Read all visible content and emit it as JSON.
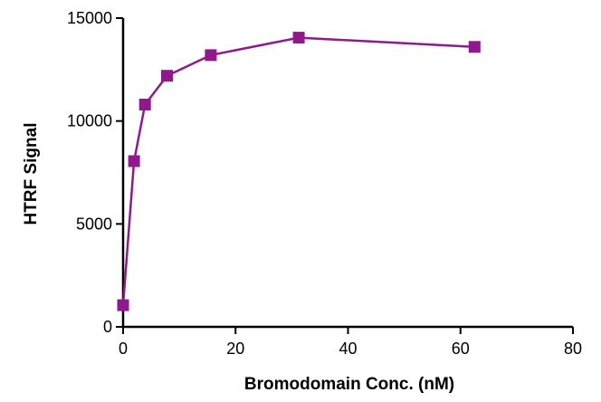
{
  "chart_data": {
    "type": "line",
    "title": "",
    "xlabel": "Bromodomain Conc. (nM)",
    "ylabel": "HTRF Signal",
    "xlim": [
      0,
      80
    ],
    "ylim": [
      0,
      15000
    ],
    "x_ticks": [
      0,
      20,
      40,
      60,
      80
    ],
    "y_ticks": [
      0,
      5000,
      10000,
      15000
    ],
    "x_tick_labels": [
      "0",
      "20",
      "40",
      "60",
      "80"
    ],
    "y_tick_labels": [
      "0",
      "5000",
      "10000",
      "15000"
    ],
    "grid": false,
    "legend": "none",
    "series": [
      {
        "color": "#8e1a8e",
        "marker": "square",
        "x": [
          0,
          1.95,
          3.9,
          7.8,
          15.6,
          31.25,
          62.5
        ],
        "y": [
          1050,
          8050,
          10800,
          12200,
          13200,
          14050,
          13600
        ]
      }
    ]
  }
}
